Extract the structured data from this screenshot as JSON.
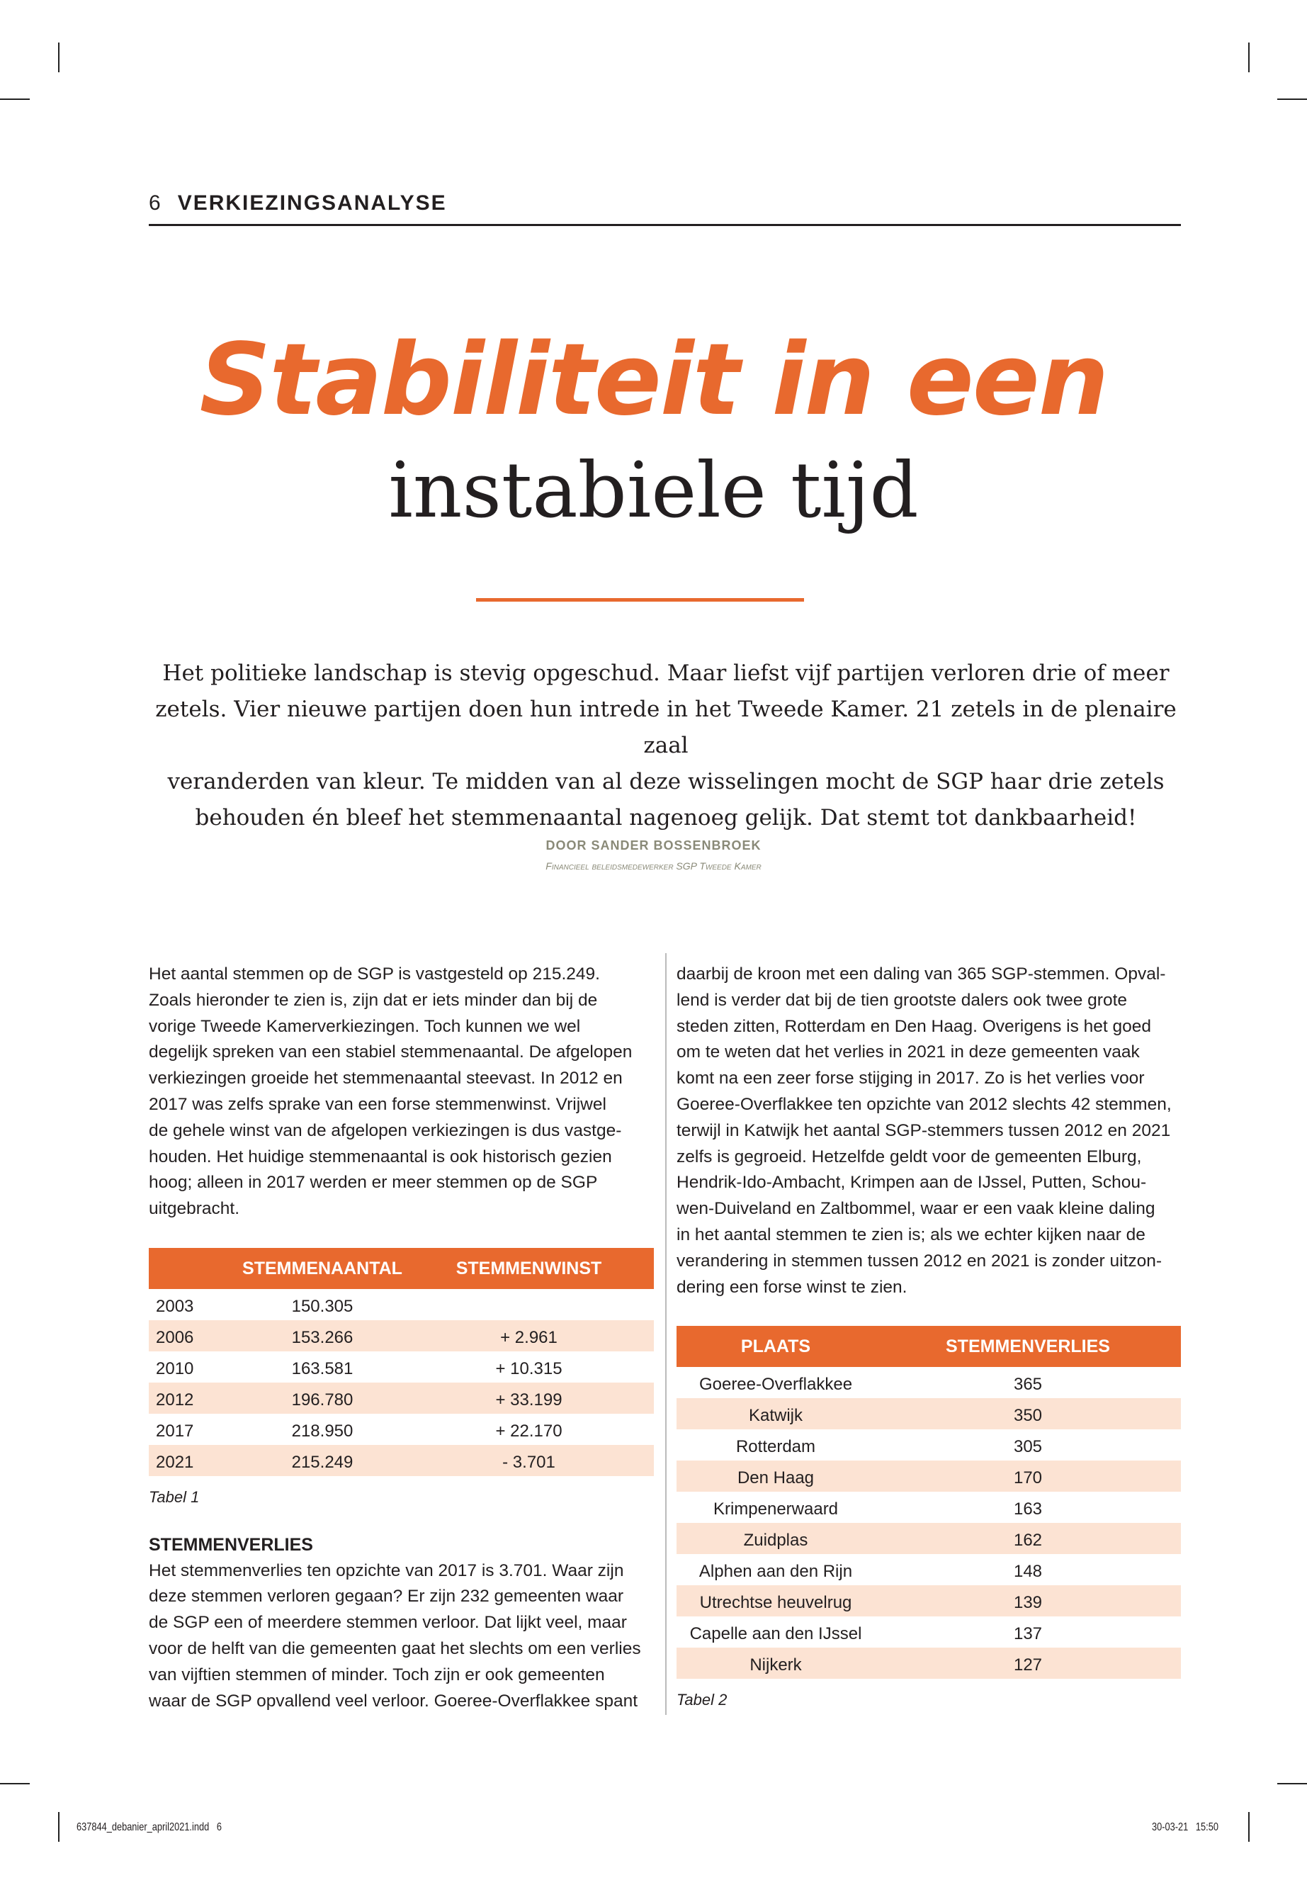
{
  "header": {
    "page_number": "6",
    "section": "VERKIEZINGSANALYSE"
  },
  "title": {
    "line1": "Stabiliteit in een",
    "line2": "instabiele tijd"
  },
  "intro": [
    "Het politieke landschap is stevig opgeschud. Maar liefst vijf partijen verloren drie of meer",
    "zetels. Vier nieuwe partijen doen hun intrede in het Tweede Kamer. 21 zetels in de plenaire zaal",
    "veranderden van kleur. Te midden van al deze wisselingen mocht de SGP haar drie zetels",
    "behouden én bleef het stemmenaantal nagenoeg gelijk. Dat stemt tot dankbaarheid!"
  ],
  "byline": {
    "author": "DOOR SANDER BOSSENBROEK",
    "role": "Financieel beleidsmedewerker SGP Tweede Kamer"
  },
  "left_column": {
    "paragraph1": [
      "Het aantal stemmen op de SGP is vastgesteld op 215.249.",
      "Zoals hieronder te zien is, zijn dat er iets minder dan bij de",
      "vorige Tweede Kamerverkiezingen. Toch kunnen we wel",
      "degelijk spreken van een stabiel stemmenaantal. De afgelopen",
      "verkiezingen groeide het stemmenaantal steevast. In 2012 en",
      "2017 was zelfs sprake van een forse stemmenwinst. Vrijwel",
      "de gehele winst van de afgelopen verkiezingen is dus vastge-",
      "houden. Het huidige stemmenaantal is ook historisch gezien",
      "hoog; alleen in 2017 werden er meer stemmen op de SGP",
      "uitgebracht."
    ],
    "table1": {
      "headers": [
        "",
        "STEMMENAANTAL",
        "STEMMENWINST"
      ],
      "rows": [
        [
          "2003",
          "150.305",
          ""
        ],
        [
          "2006",
          "153.266",
          "+ 2.961"
        ],
        [
          "2010",
          "163.581",
          "+ 10.315"
        ],
        [
          "2012",
          "196.780",
          "+ 33.199"
        ],
        [
          "2017",
          "218.950",
          "+ 22.170"
        ],
        [
          "2021",
          "215.249",
          "- 3.701"
        ]
      ],
      "caption": "Tabel 1"
    },
    "heading": "STEMMENVERLIES",
    "paragraph2": [
      "Het stemmenverlies ten opzichte van 2017 is 3.701. Waar zijn",
      "deze stemmen verloren gegaan? Er zijn 232 gemeenten waar",
      "de SGP een of meerdere stemmen verloor. Dat lijkt veel, maar",
      "voor de helft van die gemeenten gaat het slechts om een verlies",
      "van vijftien stemmen of minder. Toch zijn er ook gemeenten",
      "waar de SGP opvallend veel verloor. Goeree-Overflakkee spant"
    ]
  },
  "right_column": {
    "paragraph1": [
      "daarbij de kroon met een daling van 365 SGP-stemmen. Opval-",
      "lend is verder dat bij de tien grootste dalers ook twee grote",
      "steden zitten, Rotterdam en Den Haag. Overigens is het goed",
      "om te weten dat het verlies in 2021 in deze gemeenten vaak",
      "komt na een zeer forse stijging in 2017. Zo is het verlies voor",
      "Goeree-Overflakkee ten opzichte van 2012 slechts 42 stemmen,",
      "terwijl in Katwijk het aantal SGP-stemmers tussen 2012 en 2021",
      "zelfs is gegroeid. Hetzelfde geldt voor de gemeenten Elburg,",
      "Hendrik-Ido-Ambacht, Krimpen aan de IJssel, Putten, Schou-",
      "wen-Duiveland en Zaltbommel, waar er een vaak kleine daling",
      "in het aantal stemmen te zien is; als we echter kijken naar de",
      "verandering in stemmen tussen 2012 en 2021 is zonder uitzon-",
      "dering een forse winst te zien."
    ],
    "table2": {
      "headers": [
        "PLAATS",
        "STEMMENVERLIES"
      ],
      "rows": [
        [
          "Goeree-Overflakkee",
          "365"
        ],
        [
          "Katwijk",
          "350"
        ],
        [
          "Rotterdam",
          "305"
        ],
        [
          "Den Haag",
          "170"
        ],
        [
          "Krimpenerwaard",
          "163"
        ],
        [
          "Zuidplas",
          "162"
        ],
        [
          "Alphen aan den Rijn",
          "148"
        ],
        [
          "Utrechtse heuvelrug",
          "139"
        ],
        [
          "Capelle aan den IJssel",
          "137"
        ],
        [
          "Nijkerk",
          "127"
        ]
      ],
      "caption": "Tabel 2"
    }
  },
  "footer": {
    "file": "637844_debanier_april2021.indd   6",
    "datetime": "30-03-21   15:50"
  },
  "colors": {
    "accent": "#e8692e",
    "row_alt": "#fce3d3",
    "byline": "#8a8a78"
  }
}
